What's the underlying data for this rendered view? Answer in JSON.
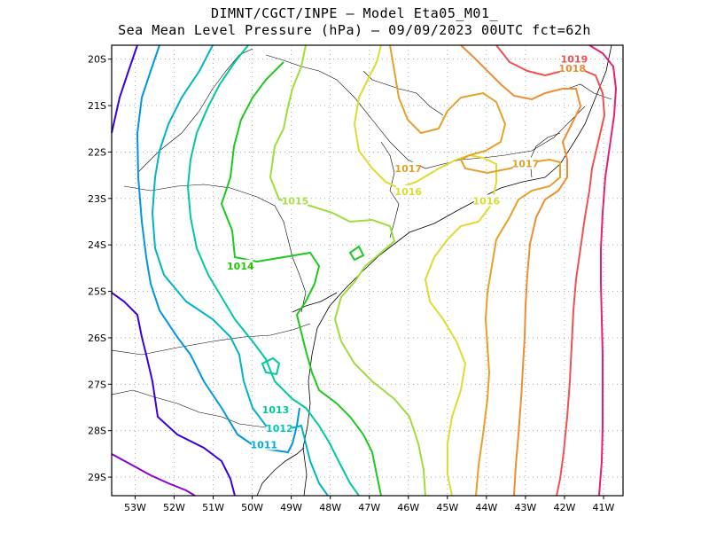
{
  "title": {
    "line1": "DIMNT/CGCT/INPE –  Model Eta05_M01_",
    "line2": "Sea Mean Level Pressure (hPa) – 09/09/2023 00UTC fct=62h"
  },
  "chart_data": {
    "type": "contour-map",
    "variable": "Sea Mean Level Pressure (hPa)",
    "init_time": "09/09/2023 00UTC",
    "forecast_hour": "fct=62h",
    "lon_range": [
      -53.6,
      -40.5
    ],
    "lat_range": [
      -29.4,
      -19.7
    ],
    "lon_ticks": [
      "53W",
      "52W",
      "51W",
      "50W",
      "49W",
      "48W",
      "47W",
      "46W",
      "45W",
      "44W",
      "43W",
      "42W",
      "41W"
    ],
    "lat_ticks": [
      "20S",
      "21S",
      "22S",
      "23S",
      "24S",
      "25S",
      "26S",
      "27S",
      "28S",
      "29S"
    ],
    "grid": "dotted",
    "contour_labels": [
      {
        "text": "1011",
        "lon": -49.7,
        "lat": -28.3,
        "color": "#00a8e0"
      },
      {
        "text": "1012",
        "lon": -49.3,
        "lat": -27.95,
        "color": "#00c8b4"
      },
      {
        "text": "1013",
        "lon": -49.4,
        "lat": -27.55,
        "color": "#00c89a"
      },
      {
        "text": "1014",
        "lon": -50.3,
        "lat": -24.45,
        "color": "#20c800"
      },
      {
        "text": "1015",
        "lon": -48.9,
        "lat": -23.05,
        "color": "#a8e046"
      },
      {
        "text": "1016",
        "lon": -46.0,
        "lat": -22.85,
        "color": "#d8dc32"
      },
      {
        "text": "1016",
        "lon": -44.0,
        "lat": -23.05,
        "color": "#d8dc32"
      },
      {
        "text": "1017",
        "lon": -46.0,
        "lat": -22.35,
        "color": "#e0a028"
      },
      {
        "text": "1017",
        "lon": -43.0,
        "lat": -22.25,
        "color": "#e0a028"
      },
      {
        "text": "1018",
        "lon": -41.8,
        "lat": -20.2,
        "color": "#ec8c32"
      },
      {
        "text": "1019",
        "lon": -41.75,
        "lat": -20.0,
        "color": "#f05050"
      }
    ]
  }
}
